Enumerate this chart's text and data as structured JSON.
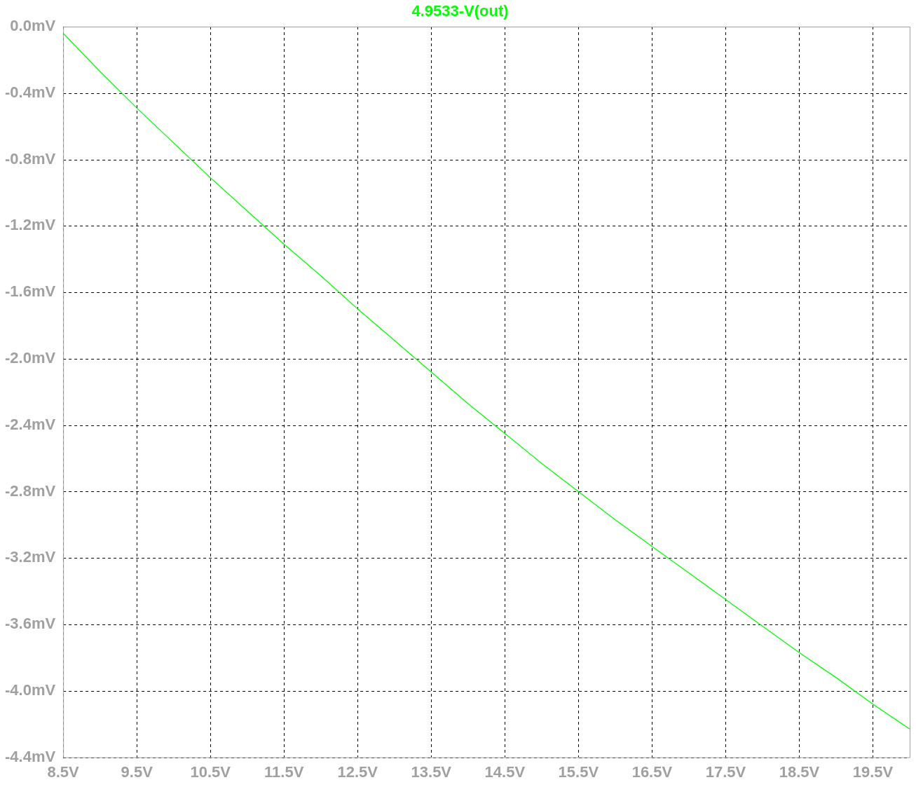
{
  "chart_data": {
    "type": "line",
    "x": [
      8.5,
      9.0,
      9.5,
      10.0,
      10.5,
      11.0,
      11.5,
      12.0,
      12.5,
      13.0,
      13.5,
      14.0,
      14.5,
      15.0,
      15.5,
      16.0,
      16.5,
      17.0,
      17.5,
      18.0,
      18.5,
      19.0,
      19.5,
      20.0
    ],
    "series": [
      {
        "name": "4.9533-V(out)",
        "color": "#00ff00",
        "values": [
          -0.04,
          -0.27,
          -0.49,
          -0.7,
          -0.91,
          -1.11,
          -1.31,
          -1.5,
          -1.7,
          -1.89,
          -2.08,
          -2.27,
          -2.45,
          -2.63,
          -2.8,
          -2.97,
          -3.13,
          -3.29,
          -3.45,
          -3.61,
          -3.77,
          -3.92,
          -4.08,
          -4.23
        ]
      }
    ],
    "xlim": [
      8.5,
      20
    ],
    "xticks": [
      {
        "value": 8.5,
        "label": "8.5V"
      },
      {
        "value": 9.5,
        "label": "9.5V"
      },
      {
        "value": 10.5,
        "label": "10.5V"
      },
      {
        "value": 11.5,
        "label": "11.5V"
      },
      {
        "value": 12.5,
        "label": "12.5V"
      },
      {
        "value": 13.5,
        "label": "13.5V"
      },
      {
        "value": 14.5,
        "label": "14.5V"
      },
      {
        "value": 15.5,
        "label": "15.5V"
      },
      {
        "value": 16.5,
        "label": "16.5V"
      },
      {
        "value": 17.5,
        "label": "17.5V"
      },
      {
        "value": 18.5,
        "label": "18.5V"
      },
      {
        "value": 19.5,
        "label": "19.5V"
      }
    ],
    "ylim": [
      -4.4,
      0
    ],
    "yticks": [
      {
        "value": 0,
        "label": "0.0mV"
      },
      {
        "value": -0.4,
        "label": "-0.4mV"
      },
      {
        "value": -0.8,
        "label": "-0.8mV"
      },
      {
        "value": -1.2,
        "label": "-1.2mV"
      },
      {
        "value": -1.6,
        "label": "-1.6mV"
      },
      {
        "value": -2.0,
        "label": "-2.0mV"
      },
      {
        "value": -2.4,
        "label": "-2.4mV"
      },
      {
        "value": -2.8,
        "label": "-2.8mV"
      },
      {
        "value": -3.2,
        "label": "-3.2mV"
      },
      {
        "value": -3.6,
        "label": "-3.6mV"
      },
      {
        "value": -4.0,
        "label": "-4.0mV"
      },
      {
        "value": -4.4,
        "label": "-4.4mV"
      }
    ],
    "grid": true,
    "legend": "top",
    "marker": "none",
    "line_style": "solid"
  }
}
